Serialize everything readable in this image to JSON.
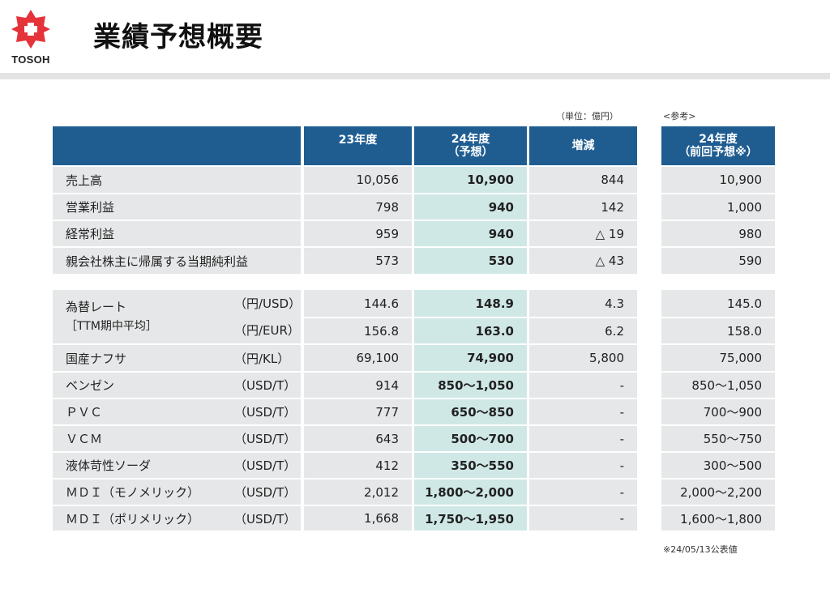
{
  "header": {
    "logo_text": "TOSOH",
    "title": "業績予想概要",
    "brand_color": "#e5333a"
  },
  "unit_note": "（単位：億円）",
  "ref_note": "<参考>",
  "footnote": "※24/05/13公表値",
  "table_header": {
    "col_23": "23年度",
    "col_24_line1": "24年度",
    "col_24_line2": "（予想）",
    "col_diff": "増減",
    "col_ref_line1": "24年度",
    "col_ref_line2": "（前回予想※）"
  },
  "financials": [
    {
      "label": "売上高",
      "fy23": "10,056",
      "fy24": "10,900",
      "diff": "844",
      "ref": "10,900"
    },
    {
      "label": "営業利益",
      "fy23": "798",
      "fy24": "940",
      "diff": "142",
      "ref": "1,000"
    },
    {
      "label": "経常利益",
      "fy23": "959",
      "fy24": "940",
      "diff": "△ 19",
      "ref": "980"
    },
    {
      "label": "親会社株主に帰属する当期純利益",
      "fy23": "573",
      "fy24": "530",
      "diff": "△ 43",
      "ref": "590"
    }
  ],
  "fx": {
    "label_line1": "為替レート",
    "label_line2": "［TTM期中平均］",
    "rows": [
      {
        "unit": "（円/USD）",
        "fy23": "144.6",
        "fy24": "148.9",
        "diff": "4.3",
        "ref": "145.0"
      },
      {
        "unit": "（円/EUR）",
        "fy23": "156.8",
        "fy24": "163.0",
        "diff": "6.2",
        "ref": "158.0"
      }
    ]
  },
  "prices": [
    {
      "label": "国産ナフサ",
      "unit": "（円/KL）",
      "fy23": "69,100",
      "fy24": "74,900",
      "diff": "5,800",
      "ref": "75,000"
    },
    {
      "label": "ベンゼン",
      "unit": "（USD/T）",
      "fy23": "914",
      "fy24": "850～1,050",
      "diff": "-",
      "ref": "850～1,050"
    },
    {
      "label": "ＰＶＣ",
      "unit": "（USD/T）",
      "fy23": "777",
      "fy24": "650～850",
      "diff": "-",
      "ref": "700～900"
    },
    {
      "label": "ＶＣＭ",
      "unit": "（USD/T）",
      "fy23": "643",
      "fy24": "500～700",
      "diff": "-",
      "ref": "550～750"
    },
    {
      "label": "液体苛性ソーダ",
      "unit": "（USD/T）",
      "fy23": "412",
      "fy24": "350～550",
      "diff": "-",
      "ref": "300～500"
    },
    {
      "label": "ＭＤＩ（モノメリック）",
      "unit": "（USD/T）",
      "fy23": "2,012",
      "fy24": "1,800～2,000",
      "diff": "-",
      "ref": "2,000～2,200"
    },
    {
      "label": "ＭＤＩ（ポリメリック）",
      "unit": "（USD/T）",
      "fy23": "1,668",
      "fy24": "1,750～1,950",
      "diff": "-",
      "ref": "1,600～1,800"
    }
  ]
}
